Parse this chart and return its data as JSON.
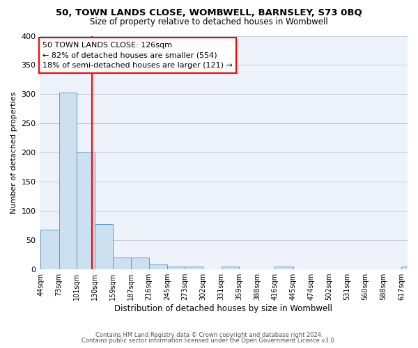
{
  "title": "50, TOWN LANDS CLOSE, WOMBWELL, BARNSLEY, S73 0BQ",
  "subtitle": "Size of property relative to detached houses in Wombwell",
  "xlabel": "Distribution of detached houses by size in Wombwell",
  "ylabel": "Number of detached properties",
  "bar_edges": [
    44,
    73,
    101,
    130,
    159,
    187,
    216,
    245,
    273,
    302,
    331,
    359,
    388,
    416,
    445,
    474,
    502,
    531,
    560,
    588,
    617
  ],
  "bar_heights": [
    68,
    303,
    200,
    78,
    20,
    20,
    8,
    5,
    5,
    0,
    5,
    0,
    0,
    5,
    0,
    0,
    0,
    0,
    0,
    0,
    5
  ],
  "bar_color": "#cce0f0",
  "bar_edge_color": "#5a9ec9",
  "red_line_x": 126,
  "ylim": [
    0,
    400
  ],
  "yticks": [
    0,
    50,
    100,
    150,
    200,
    250,
    300,
    350,
    400
  ],
  "annotation_title": "50 TOWN LANDS CLOSE: 126sqm",
  "annotation_line1": "← 82% of detached houses are smaller (554)",
  "annotation_line2": "18% of semi-detached houses are larger (121) →",
  "footer_line1": "Contains HM Land Registry data © Crown copyright and database right 2024.",
  "footer_line2": "Contains public sector information licensed under the Open Government Licence v3.0.",
  "background_color": "#ffffff",
  "plot_bg_color": "#eef2fb"
}
